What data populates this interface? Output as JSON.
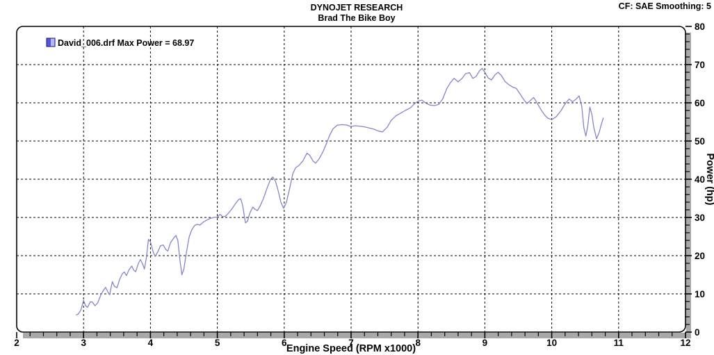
{
  "header": {
    "title": "DYNOJET RESEARCH",
    "subtitle": "Brad The Bike Boy",
    "correction_info": "CF: SAE  Smoothing: 5"
  },
  "legend": {
    "label": "David_006.drf Max Power = 68.97",
    "marker": {
      "left_color": "#5656d8",
      "right_color": "#b5b5f2",
      "border_color": "#15157e"
    }
  },
  "colors": {
    "curve": "#8484ca",
    "grid": "#000000",
    "border": "#000000",
    "shadow": "#a9a9a9",
    "background": "#ffffff"
  },
  "chart_data": {
    "type": "line",
    "title": "DYNOJET RESEARCH",
    "subtitle": "Brad The Bike Boy",
    "corner_text": "CF: SAE  Smoothing: 5",
    "xlabel": "Engine Speed (RPM x1000)",
    "ylabel": "Power (hp)",
    "xlim": [
      2,
      12
    ],
    "ylim": [
      0,
      80
    ],
    "x_major_ticks": [
      2,
      3,
      4,
      5,
      6,
      7,
      8,
      9,
      10,
      11,
      12
    ],
    "x_minor_step": 0.2,
    "y_major_ticks": [
      0,
      10,
      20,
      30,
      40,
      50,
      60,
      70,
      80
    ],
    "y_minor_step": 2,
    "grid": "dashed",
    "legend_position": "top-left",
    "series": [
      {
        "name": "David_006.drf",
        "legend_label": "David_006.drf Max Power = 68.97",
        "max_power": 68.97,
        "color": "#8484ca",
        "points": [
          [
            2.89,
            4.5
          ],
          [
            2.92,
            4.7
          ],
          [
            2.96,
            5.8
          ],
          [
            3.0,
            8.3
          ],
          [
            3.03,
            6.9
          ],
          [
            3.06,
            6.5
          ],
          [
            3.1,
            7.9
          ],
          [
            3.13,
            7.9
          ],
          [
            3.17,
            6.9
          ],
          [
            3.21,
            7.6
          ],
          [
            3.26,
            9.8
          ],
          [
            3.3,
            11.0
          ],
          [
            3.33,
            11.7
          ],
          [
            3.36,
            10.6
          ],
          [
            3.39,
            9.8
          ],
          [
            3.43,
            13.2
          ],
          [
            3.46,
            12.0
          ],
          [
            3.5,
            11.6
          ],
          [
            3.54,
            13.8
          ],
          [
            3.58,
            15.3
          ],
          [
            3.61,
            15.7
          ],
          [
            3.64,
            14.8
          ],
          [
            3.68,
            16.3
          ],
          [
            3.72,
            17.3
          ],
          [
            3.75,
            16.2
          ],
          [
            3.78,
            15.8
          ],
          [
            3.82,
            18.0
          ],
          [
            3.85,
            19.0
          ],
          [
            3.88,
            17.9
          ],
          [
            3.91,
            16.5
          ],
          [
            3.94,
            19.5
          ],
          [
            3.97,
            24.3
          ],
          [
            4.0,
            23.6
          ],
          [
            4.04,
            21.0
          ],
          [
            4.07,
            19.8
          ],
          [
            4.11,
            21.0
          ],
          [
            4.15,
            22.6
          ],
          [
            4.19,
            22.8
          ],
          [
            4.23,
            21.6
          ],
          [
            4.26,
            21.2
          ],
          [
            4.3,
            23.4
          ],
          [
            4.34,
            24.4
          ],
          [
            4.38,
            25.3
          ],
          [
            4.41,
            24.0
          ],
          [
            4.44,
            19.0
          ],
          [
            4.47,
            15.0
          ],
          [
            4.5,
            16.5
          ],
          [
            4.54,
            21.0
          ],
          [
            4.58,
            25.0
          ],
          [
            4.62,
            26.8
          ],
          [
            4.66,
            27.9
          ],
          [
            4.7,
            28.2
          ],
          [
            4.74,
            28.0
          ],
          [
            4.79,
            28.8
          ],
          [
            4.84,
            29.3
          ],
          [
            4.89,
            29.7
          ],
          [
            4.94,
            30.0
          ],
          [
            5.0,
            30.1
          ],
          [
            5.04,
            30.8
          ],
          [
            5.08,
            30.2
          ],
          [
            5.12,
            30.3
          ],
          [
            5.17,
            31.2
          ],
          [
            5.22,
            32.3
          ],
          [
            5.27,
            33.6
          ],
          [
            5.32,
            34.7
          ],
          [
            5.35,
            34.9
          ],
          [
            5.38,
            33.0
          ],
          [
            5.42,
            28.6
          ],
          [
            5.45,
            29.0
          ],
          [
            5.49,
            31.3
          ],
          [
            5.53,
            32.7
          ],
          [
            5.56,
            32.2
          ],
          [
            5.6,
            31.8
          ],
          [
            5.64,
            33.0
          ],
          [
            5.69,
            35.0
          ],
          [
            5.74,
            37.5
          ],
          [
            5.79,
            39.8
          ],
          [
            5.83,
            40.6
          ],
          [
            5.87,
            39.5
          ],
          [
            5.91,
            37.0
          ],
          [
            5.95,
            34.0
          ],
          [
            5.99,
            32.4
          ],
          [
            6.03,
            33.8
          ],
          [
            6.08,
            37.5
          ],
          [
            6.13,
            41.5
          ],
          [
            6.17,
            43.0
          ],
          [
            6.22,
            43.6
          ],
          [
            6.28,
            44.8
          ],
          [
            6.34,
            46.8
          ],
          [
            6.38,
            46.3
          ],
          [
            6.43,
            44.8
          ],
          [
            6.47,
            44.2
          ],
          [
            6.52,
            45.3
          ],
          [
            6.58,
            47.2
          ],
          [
            6.63,
            49.3
          ],
          [
            6.68,
            51.5
          ],
          [
            6.73,
            53.2
          ],
          [
            6.79,
            54.1
          ],
          [
            6.86,
            54.3
          ],
          [
            6.93,
            54.2
          ],
          [
            7.0,
            53.8
          ],
          [
            7.06,
            54.0
          ],
          [
            7.13,
            53.9
          ],
          [
            7.2,
            53.7
          ],
          [
            7.27,
            53.4
          ],
          [
            7.34,
            53.1
          ],
          [
            7.41,
            52.6
          ],
          [
            7.47,
            52.4
          ],
          [
            7.54,
            53.6
          ],
          [
            7.6,
            55.4
          ],
          [
            7.67,
            56.6
          ],
          [
            7.74,
            57.3
          ],
          [
            7.81,
            58.0
          ],
          [
            7.89,
            58.7
          ],
          [
            7.95,
            59.8
          ],
          [
            8.01,
            60.5
          ],
          [
            8.06,
            60.7
          ],
          [
            8.12,
            59.9
          ],
          [
            8.18,
            59.4
          ],
          [
            8.25,
            59.3
          ],
          [
            8.31,
            59.6
          ],
          [
            8.37,
            61.0
          ],
          [
            8.43,
            63.7
          ],
          [
            8.49,
            65.4
          ],
          [
            8.54,
            66.4
          ],
          [
            8.6,
            65.5
          ],
          [
            8.66,
            66.4
          ],
          [
            8.71,
            67.6
          ],
          [
            8.77,
            67.9
          ],
          [
            8.82,
            66.4
          ],
          [
            8.87,
            66.9
          ],
          [
            8.92,
            68.4
          ],
          [
            8.96,
            69.0
          ],
          [
            9.0,
            68.0
          ],
          [
            9.05,
            66.5
          ],
          [
            9.1,
            66.0
          ],
          [
            9.15,
            67.3
          ],
          [
            9.2,
            68.0
          ],
          [
            9.25,
            67.1
          ],
          [
            9.3,
            65.6
          ],
          [
            9.37,
            64.6
          ],
          [
            9.43,
            64.0
          ],
          [
            9.47,
            63.8
          ],
          [
            9.53,
            62.2
          ],
          [
            9.58,
            60.9
          ],
          [
            9.63,
            59.8
          ],
          [
            9.68,
            60.6
          ],
          [
            9.73,
            61.4
          ],
          [
            9.78,
            60.0
          ],
          [
            9.83,
            58.5
          ],
          [
            9.89,
            56.9
          ],
          [
            9.94,
            56.0
          ],
          [
            10.0,
            55.6
          ],
          [
            10.07,
            56.4
          ],
          [
            10.14,
            58.0
          ],
          [
            10.2,
            59.7
          ],
          [
            10.26,
            61.0
          ],
          [
            10.31,
            60.3
          ],
          [
            10.36,
            60.9
          ],
          [
            10.41,
            61.8
          ],
          [
            10.45,
            59.0
          ],
          [
            10.48,
            53.5
          ],
          [
            10.51,
            51.3
          ],
          [
            10.54,
            54.0
          ],
          [
            10.57,
            58.9
          ],
          [
            10.6,
            57.0
          ],
          [
            10.63,
            53.5
          ],
          [
            10.67,
            50.6
          ],
          [
            10.71,
            52.3
          ],
          [
            10.74,
            54.3
          ],
          [
            10.77,
            56.0
          ]
        ]
      }
    ]
  }
}
